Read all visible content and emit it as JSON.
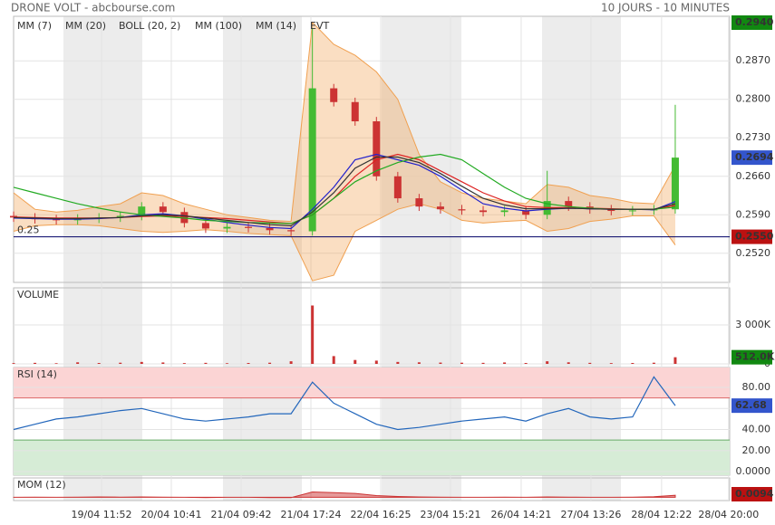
{
  "header": {
    "title": "DRONE VOLT - abcbourse.com",
    "period": "10 JOURS - 10 MINUTES"
  },
  "chart_data": [
    {
      "type": "candlestick",
      "open": [
        0.2588,
        0.2585,
        0.2582,
        0.258,
        0.2583,
        0.2585,
        0.2588,
        0.2605,
        0.2595,
        0.2575,
        0.2565,
        0.2568,
        0.2566,
        0.2562,
        0.256,
        0.282,
        0.2795,
        0.276,
        0.266,
        0.262,
        0.2605,
        0.26,
        0.2598,
        0.2595,
        0.2598,
        0.259,
        0.2615,
        0.2605,
        0.26,
        0.2597,
        0.2598,
        0.26
      ],
      "high": [
        0.2596,
        0.2593,
        0.259,
        0.2591,
        0.2593,
        0.2596,
        0.2613,
        0.2613,
        0.2603,
        0.2583,
        0.2576,
        0.2576,
        0.2574,
        0.257,
        0.293,
        0.2828,
        0.2803,
        0.2768,
        0.2668,
        0.2628,
        0.2613,
        0.2608,
        0.2606,
        0.2606,
        0.2606,
        0.267,
        0.2623,
        0.2613,
        0.2608,
        0.2606,
        0.2608,
        0.279
      ],
      "low": [
        0.2577,
        0.2574,
        0.2572,
        0.2572,
        0.2575,
        0.2577,
        0.258,
        0.2587,
        0.2567,
        0.2557,
        0.2557,
        0.2558,
        0.2554,
        0.2552,
        0.2552,
        0.2787,
        0.2752,
        0.2652,
        0.2612,
        0.2597,
        0.2592,
        0.259,
        0.2587,
        0.2587,
        0.2582,
        0.2582,
        0.2597,
        0.2592,
        0.2589,
        0.2589,
        0.259,
        0.2592
      ],
      "close": [
        0.2585,
        0.2582,
        0.258,
        0.2583,
        0.2585,
        0.2588,
        0.2605,
        0.2595,
        0.2575,
        0.2565,
        0.2568,
        0.2566,
        0.2562,
        0.256,
        0.282,
        0.2795,
        0.276,
        0.266,
        0.262,
        0.2605,
        0.26,
        0.2598,
        0.2595,
        0.2598,
        0.259,
        0.2615,
        0.2605,
        0.26,
        0.2597,
        0.2598,
        0.26,
        0.2694
      ],
      "up_color": "#44bb33",
      "down_color": "#cc3333",
      "bollinger": {
        "name": "BOLL (20, 2)",
        "color": "#f0a050",
        "upper": [
          0.263,
          0.26,
          0.2595,
          0.2598,
          0.2605,
          0.261,
          0.263,
          0.2625,
          0.261,
          0.26,
          0.259,
          0.2585,
          0.258,
          0.2578,
          0.294,
          0.29,
          0.288,
          0.285,
          0.28,
          0.27,
          0.265,
          0.263,
          0.262,
          0.2615,
          0.261,
          0.2645,
          0.264,
          0.2625,
          0.262,
          0.2612,
          0.261,
          0.268
        ],
        "lower": [
          0.256,
          0.257,
          0.2572,
          0.2572,
          0.257,
          0.2565,
          0.256,
          0.2558,
          0.256,
          0.2563,
          0.256,
          0.2556,
          0.2554,
          0.2552,
          0.247,
          0.248,
          0.256,
          0.258,
          0.26,
          0.261,
          0.26,
          0.258,
          0.2575,
          0.2578,
          0.258,
          0.256,
          0.2565,
          0.2578,
          0.2582,
          0.2588,
          0.2588,
          0.2535
        ]
      },
      "series": [
        {
          "name": "MM (7)",
          "color": "#2222cc",
          "values": [
            0.2584,
            0.2583,
            0.2582,
            0.2582,
            0.2583,
            0.2585,
            0.259,
            0.2592,
            0.2588,
            0.2582,
            0.2576,
            0.2571,
            0.2567,
            0.2565,
            0.26,
            0.264,
            0.269,
            0.27,
            0.269,
            0.268,
            0.266,
            0.2635,
            0.261,
            0.2602,
            0.2597,
            0.26,
            0.2602,
            0.2601,
            0.26,
            0.26,
            0.2599,
            0.2614
          ]
        },
        {
          "name": "MM (20)",
          "color": "#dd2222",
          "values": [
            0.2586,
            0.2585,
            0.2584,
            0.2584,
            0.2584,
            0.2585,
            0.2587,
            0.2588,
            0.2587,
            0.2585,
            0.2583,
            0.258,
            0.2577,
            0.2574,
            0.259,
            0.262,
            0.266,
            0.269,
            0.27,
            0.269,
            0.267,
            0.265,
            0.263,
            0.2615,
            0.2605,
            0.2603,
            0.2603,
            0.2602,
            0.2601,
            0.26,
            0.26,
            0.2607
          ]
        },
        {
          "name": "MM (100)",
          "color": "#22aa22",
          "values": [
            0.264,
            0.263,
            0.262,
            0.261,
            0.2602,
            0.2595,
            0.259,
            0.2587,
            0.2584,
            0.258,
            0.2578,
            0.2576,
            0.2575,
            0.2574,
            0.259,
            0.262,
            0.265,
            0.267,
            0.2685,
            0.2695,
            0.27,
            0.269,
            0.2665,
            0.264,
            0.262,
            0.261,
            0.2605,
            0.2602,
            0.26,
            0.26,
            0.26,
            0.2604
          ]
        },
        {
          "name": "MM (14)",
          "color": "#333333",
          "values": [
            0.2585,
            0.2584,
            0.2583,
            0.2583,
            0.2584,
            0.2585,
            0.2588,
            0.259,
            0.2588,
            0.2584,
            0.258,
            0.2576,
            0.2572,
            0.257,
            0.2595,
            0.263,
            0.2675,
            0.2695,
            0.2695,
            0.2685,
            0.2665,
            0.2642,
            0.262,
            0.2608,
            0.2601,
            0.2601,
            0.2602,
            0.2601,
            0.26,
            0.26,
            0.26,
            0.261
          ]
        }
      ],
      "event_label": "EVT",
      "ylim": [
        0.2467,
        0.2951
      ],
      "yticks": [
        {
          "value": 0.252,
          "label": "0.2520"
        },
        {
          "value": 0.259,
          "label": "0.2590"
        },
        {
          "value": 0.266,
          "label": "0.2660"
        },
        {
          "value": 0.273,
          "label": "0.2730"
        },
        {
          "value": 0.28,
          "label": "0.2800"
        },
        {
          "value": 0.287,
          "label": "0.2870"
        }
      ],
      "ref_line": {
        "value": 0.255,
        "label": "0.25",
        "color": "#000066"
      },
      "price_tags": [
        {
          "value": 0.294,
          "label": "0.2940",
          "color": "#118811"
        },
        {
          "value": 0.2694,
          "label": "0.2694",
          "color": "#3355cc"
        },
        {
          "value": 0.255,
          "label": "0.2550",
          "color": "#bb1111"
        }
      ]
    },
    {
      "type": "bar",
      "title": "VOLUME",
      "color": "#cc3333",
      "values": [
        60,
        80,
        50,
        120,
        70,
        90,
        150,
        110,
        60,
        80,
        50,
        70,
        90,
        200,
        4500,
        600,
        300,
        250,
        150,
        120,
        100,
        90,
        80,
        110,
        70,
        200,
        120,
        80,
        60,
        70,
        90,
        512
      ],
      "ylim": [
        0,
        5860
      ],
      "yticks": [
        0,
        {
          "value": 3000,
          "label": "3 000K"
        }
      ],
      "price_tags": [
        {
          "value": 512,
          "label": "512.0K",
          "color": "#118811"
        }
      ]
    },
    {
      "type": "line",
      "title": "RSI (14)",
      "color": "#2266bb",
      "values": [
        40,
        45,
        50,
        52,
        55,
        58,
        60,
        55,
        50,
        48,
        50,
        52,
        55,
        55,
        85,
        65,
        55,
        45,
        40,
        42,
        45,
        48,
        50,
        52,
        48,
        55,
        60,
        52,
        50,
        52,
        90,
        62.68
      ],
      "zones": [
        30,
        70
      ],
      "ylim": [
        -3.4,
        98.9
      ],
      "yticks": [
        {
          "value": 0,
          "label": "0.0000"
        },
        {
          "value": 20,
          "label": "20.00"
        },
        {
          "value": 40,
          "label": "40.00"
        },
        {
          "value": 60,
          "label": "60.00"
        },
        {
          "value": 80,
          "label": "80.00"
        }
      ],
      "price_tags": [
        {
          "value": 62.68,
          "label": "62.68",
          "color": "#3355cc"
        }
      ]
    },
    {
      "type": "area",
      "title": "MOM (12)",
      "color": "#cc3333",
      "values": [
        0,
        0.001,
        0,
        0.001,
        0.002,
        0.001,
        0.002,
        0.001,
        0,
        -0.001,
        0,
        0,
        -0.001,
        -0.001,
        0.025,
        0.022,
        0.018,
        0.008,
        0.004,
        0.002,
        0.001,
        0,
        0,
        0.001,
        0,
        0.002,
        0.001,
        0,
        0,
        0.001,
        0.003,
        0.0094
      ],
      "ylim": [
        -0.015,
        0.09
      ],
      "price_tags": [
        {
          "value": 0.0094,
          "label": "0.0094",
          "color": "#bb1111"
        }
      ],
      "xlim": [
        0,
        33.55
      ],
      "xticks": [
        {
          "value": 4.12,
          "label": "19/04 11:52"
        },
        {
          "value": 7.39,
          "label": "20/04 10:41"
        },
        {
          "value": 10.66,
          "label": "21/04 09:42"
        },
        {
          "value": 13.93,
          "label": "21/04 17:24"
        },
        {
          "value": 17.2,
          "label": "22/04 16:25"
        },
        {
          "value": 20.47,
          "label": "23/04 15:21"
        },
        {
          "value": 23.78,
          "label": "26/04 14:21"
        },
        {
          "value": 27.05,
          "label": "27/04 13:26"
        },
        {
          "value": 30.36,
          "label": "28/04 12:22"
        },
        {
          "value": 33.5,
          "label": "28/04 20:00"
        }
      ]
    }
  ]
}
